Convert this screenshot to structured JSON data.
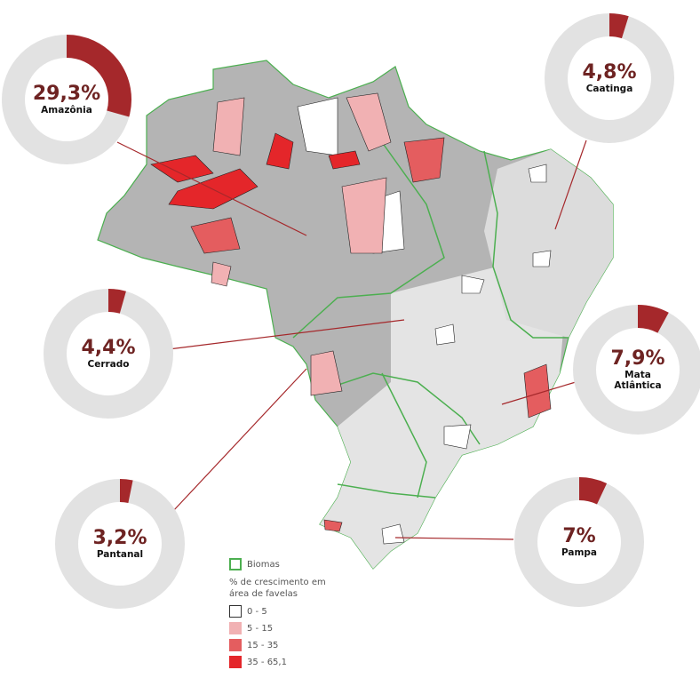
{
  "colors": {
    "accent": "#a5282b",
    "ring": "#e2e2e2",
    "pct_text": "#6e2322",
    "biome_border": "#4caf50",
    "map_base": "#b4b4b4"
  },
  "donuts": [
    {
      "pct": "29,3%",
      "value": 29.3,
      "biome": "Amazônia"
    },
    {
      "pct": "4,8%",
      "value": 4.8,
      "biome": "Caatinga"
    },
    {
      "pct": "4,4%",
      "value": 4.4,
      "biome": "Cerrado"
    },
    {
      "pct": "7,9%",
      "value": 7.9,
      "biome": "Mata Atlântica"
    },
    {
      "pct": "3,2%",
      "value": 3.2,
      "biome": "Pantanal"
    },
    {
      "pct": "7%",
      "value": 7,
      "biome": "Pampa"
    }
  ],
  "legend": {
    "biomes_label": "Biomas",
    "title": "% de crescimento em área de favelas",
    "classes": [
      {
        "label": "0 - 5",
        "color": "#ffffff"
      },
      {
        "label": "5 - 15",
        "color": "#f1b1b3"
      },
      {
        "label": "15 - 35",
        "color": "#e45d5f"
      },
      {
        "label": "35 - 65,1",
        "color": "#e4262a"
      }
    ]
  }
}
